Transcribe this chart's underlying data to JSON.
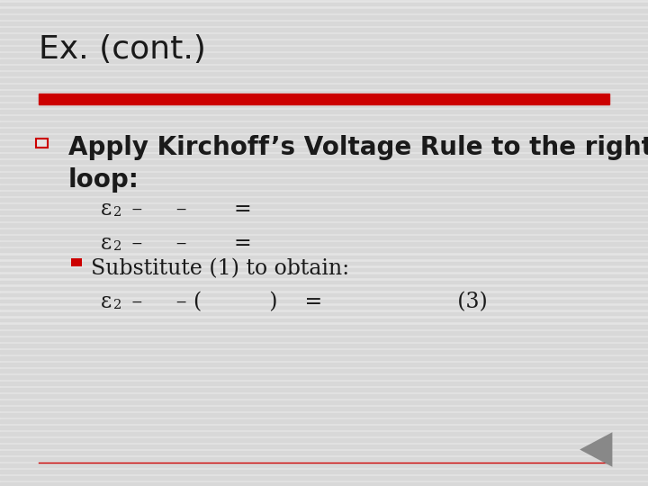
{
  "title": "Ex. (cont.)",
  "title_color": "#1a1a1a",
  "title_fontsize": 26,
  "bg_color": "#e4e4e4",
  "stripe_color": "#d8d8d8",
  "red_bar_color": "#cc0000",
  "thin_line_color": "#cc0000",
  "text_color": "#1a1a1a",
  "bullet_open_color": "#cc0000",
  "bullet_filled_color": "#cc0000",
  "main_text_line1": "Apply Kirchoff’s Voltage Rule to the right",
  "main_text_line2": "loop:",
  "main_fontsize": 20,
  "lines_fontsize": 17,
  "line3_bullet": "Substitute (1) to obtain:",
  "bottom_line_color": "#cc0000",
  "nav_arrow_color": "#888888"
}
